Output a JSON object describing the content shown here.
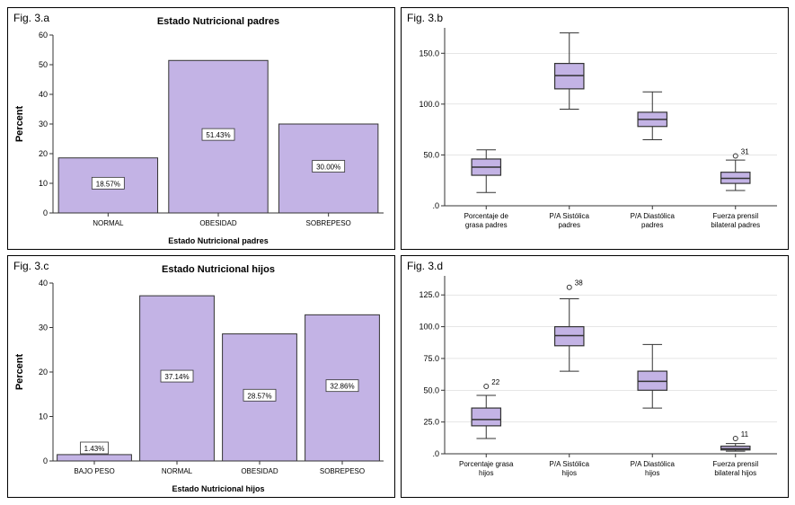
{
  "figure_a": {
    "label": "Fig. 3.a",
    "type": "bar",
    "title": "Estado Nutricional padres",
    "xlabel": "Estado Nutricional padres",
    "ylabel": "Percent",
    "ylim": [
      0,
      60
    ],
    "ytick_step": 10,
    "categories": [
      "NORMAL",
      "OBESIDAD",
      "SOBREPESO"
    ],
    "values": [
      18.57,
      51.43,
      30.0
    ],
    "value_labels": [
      "18.57%",
      "51.43%",
      "30.00%"
    ],
    "bar_color": "#c3b3e5",
    "bar_width": 0.9,
    "label_fontsize": 8,
    "title_fontsize": 11,
    "grid_color": "#cccccc",
    "background_color": "#ffffff"
  },
  "figure_b": {
    "label": "Fig. 3.b",
    "type": "boxplot",
    "ylim": [
      0,
      175
    ],
    "yticks": [
      0.0,
      50.0,
      100.0,
      150.0
    ],
    "ytick_labels": [
      ".0",
      "50.0",
      "100.0",
      "150.0"
    ],
    "categories": [
      "Porcentaje de grasa padres",
      "P/A Sistólica padres",
      "P/A Diastólica padres",
      "Fuerza prensil bilateral padres"
    ],
    "boxes": [
      {
        "min": 13,
        "q1": 30,
        "median": 38,
        "q3": 46,
        "max": 55,
        "outliers": []
      },
      {
        "min": 95,
        "q1": 115,
        "median": 128,
        "q3": 140,
        "max": 170,
        "outliers": []
      },
      {
        "min": 65,
        "q1": 78,
        "median": 85,
        "q3": 92,
        "max": 112,
        "outliers": []
      },
      {
        "min": 15,
        "q1": 22,
        "median": 27,
        "q3": 33,
        "max": 45,
        "outliers": [
          {
            "v": 49,
            "label": "31"
          }
        ]
      }
    ],
    "box_color": "#c3b3e5",
    "label_fontsize": 8,
    "grid_color": "#cccccc",
    "background_color": "#ffffff"
  },
  "figure_c": {
    "label": "Fig. 3.c",
    "type": "bar",
    "title": "Estado Nutricional hijos",
    "xlabel": "Estado Nutricional hijos",
    "ylabel": "Percent",
    "ylim": [
      0,
      40
    ],
    "ytick_step": 10,
    "categories": [
      "BAJO PESO",
      "NORMAL",
      "OBESIDAD",
      "SOBREPESO"
    ],
    "values": [
      1.43,
      37.14,
      28.57,
      32.86
    ],
    "value_labels": [
      "1.43%",
      "37.14%",
      "28.57%",
      "32.86%"
    ],
    "bar_color": "#c3b3e5",
    "bar_width": 0.9,
    "label_fontsize": 8,
    "title_fontsize": 11,
    "grid_color": "#cccccc",
    "background_color": "#ffffff"
  },
  "figure_d": {
    "label": "Fig. 3.d",
    "type": "boxplot",
    "ylim": [
      0,
      140
    ],
    "yticks": [
      0.0,
      25.0,
      50.0,
      75.0,
      100.0,
      125.0
    ],
    "ytick_labels": [
      ".0",
      "25.0",
      "50.0",
      "75.0",
      "100.0",
      "125.0"
    ],
    "categories": [
      "Porcentaje grasa hijos",
      "P/A Sistólica hijos",
      "P/A Diastólica hijos",
      "Fuerza prensil bilateral hijos"
    ],
    "boxes": [
      {
        "min": 12,
        "q1": 22,
        "median": 27,
        "q3": 36,
        "max": 46,
        "outliers": [
          {
            "v": 53,
            "label": "22"
          }
        ]
      },
      {
        "min": 65,
        "q1": 85,
        "median": 93,
        "q3": 100,
        "max": 122,
        "outliers": [
          {
            "v": 131,
            "label": "38"
          }
        ]
      },
      {
        "min": 36,
        "q1": 50,
        "median": 57,
        "q3": 65,
        "max": 86,
        "outliers": []
      },
      {
        "min": 2,
        "q1": 3,
        "median": 4,
        "q3": 6,
        "max": 8,
        "outliers": [
          {
            "v": 12,
            "label": "11"
          }
        ]
      }
    ],
    "box_color": "#c3b3e5",
    "label_fontsize": 8,
    "grid_color": "#cccccc",
    "background_color": "#ffffff"
  }
}
